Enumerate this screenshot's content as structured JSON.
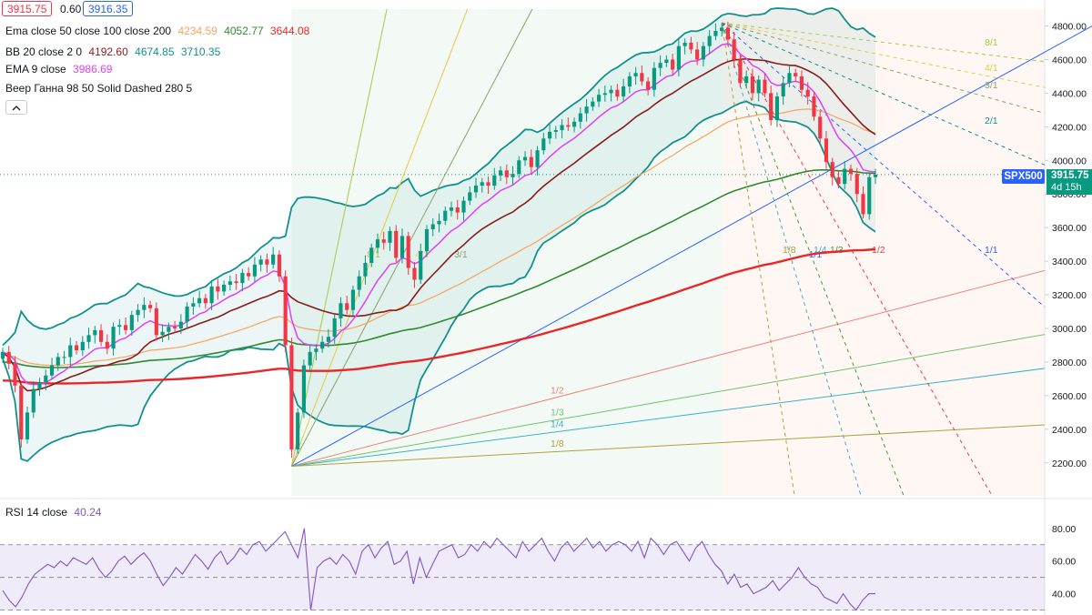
{
  "header": {
    "bid": "3915.75",
    "spread": "0.60",
    "ask": "3916.35"
  },
  "legend": {
    "ema": {
      "label": "Ema close 50 close 100 close 200",
      "v50": "4234.59",
      "v100": "4052.77",
      "v200": "3644.08"
    },
    "bb": {
      "label": "BB 20 close 2 0",
      "basis": "4192.60",
      "upper": "4674.85",
      "lower": "3710.35"
    },
    "ema9": {
      "label": "EMA 9 close",
      "value": "3986.69"
    },
    "gann": {
      "label": "Веер Ганна 98 50 Solid Dashed 280 5"
    },
    "rsi": {
      "label": "RSI 14 close",
      "value": "40.24"
    },
    "collapse_icon": "chevron-up-icon"
  },
  "price_tag": {
    "symbol": "SPX500",
    "price": "3915.75",
    "countdown": "4d 15h"
  },
  "colors": {
    "up": "#089981",
    "down": "#f23645",
    "ema50": "#f7a35c",
    "ema100": "#2e8b2e",
    "ema200": "#e8272a",
    "bb_basis": "#8b1a1a",
    "bb_bands": "#12908e",
    "ema9": "#e040fb",
    "rsi": "#7e57c2",
    "accent": "#2962ff"
  },
  "chart_data": [
    {
      "type": "candlestick",
      "symbol": "SPX500",
      "y_ticks": [
        "4800.00",
        "4600.00",
        "4400.00",
        "4200.00",
        "4000.00",
        "3800.00",
        "3600.00",
        "3400.00",
        "3200.00",
        "3000.00",
        "2800.00",
        "2600.00",
        "2400.00",
        "2200.00"
      ],
      "ylim": [
        2050,
        4900
      ],
      "last_price": 3915.75,
      "closes": [
        2860,
        2790,
        2660,
        2340,
        2500,
        2640,
        2680,
        2720,
        2780,
        2830,
        2830,
        2900,
        2870,
        2920,
        2960,
        2990,
        2920,
        2880,
        3010,
        3020,
        2990,
        3080,
        3110,
        3140,
        3120,
        2960,
        2980,
        3010,
        3000,
        3040,
        3130,
        3150,
        3180,
        3150,
        3250,
        3220,
        3260,
        3280,
        3270,
        3330,
        3310,
        3380,
        3410,
        3380,
        3440,
        3310,
        2900,
        2280,
        2500,
        2780,
        2860,
        2880,
        2920,
        2950,
        3060,
        3150,
        3110,
        3230,
        3310,
        3390,
        3480,
        3530,
        3510,
        3580,
        3420,
        3550,
        3360,
        3290,
        3460,
        3590,
        3620,
        3640,
        3700,
        3720,
        3690,
        3760,
        3810,
        3850,
        3870,
        3850,
        3910,
        3940,
        3900,
        3920,
        4000,
        4020,
        3960,
        4060,
        4130,
        4170,
        4180,
        4210,
        4200,
        4230,
        4280,
        4320,
        4350,
        4390,
        4400,
        4420,
        4380,
        4440,
        4500,
        4520,
        4470,
        4420,
        4550,
        4580,
        4600,
        4540,
        4680,
        4700,
        4660,
        4600,
        4680,
        4740,
        4770,
        4790,
        4720,
        4600,
        4460,
        4500,
        4400,
        4480,
        4400,
        4240,
        4380,
        4460,
        4520,
        4500,
        4420,
        4380,
        4260,
        4130,
        3990,
        3900,
        3860,
        3950,
        3920,
        3800,
        3680,
        3900,
        3915
      ],
      "ema_plotted": {
        "periods": [
          9,
          50,
          100,
          200
        ],
        "bb_period": 20,
        "bb_stddev": 2
      },
      "gann_fan": {
        "origin_price": 2180,
        "lower_fan_labels": [
          "8/1",
          "4/1",
          "3/1",
          "1/1",
          "1/2",
          "1/3",
          "1/4",
          "1/8"
        ],
        "upper_fan_labels": [
          "8/1",
          "4/1",
          "3/1",
          "2/1",
          "1/1",
          "1/2",
          "1/3",
          "1/4",
          "1/8"
        ],
        "top_price": 4818
      }
    },
    {
      "type": "line",
      "name": "RSI 14 close",
      "y_ticks": [
        "80.00",
        "60.00",
        "40.00"
      ],
      "ylim": [
        27,
        86
      ],
      "bands": [
        30,
        50,
        70
      ],
      "values": [
        42,
        36,
        32,
        38,
        46,
        52,
        55,
        58,
        56,
        60,
        57,
        62,
        60,
        58,
        62,
        55,
        50,
        54,
        60,
        63,
        58,
        62,
        65,
        60,
        52,
        45,
        50,
        56,
        52,
        58,
        64,
        60,
        55,
        62,
        66,
        58,
        62,
        68,
        64,
        70,
        72,
        66,
        70,
        74,
        78,
        70,
        62,
        80,
        30,
        56,
        60,
        62,
        58,
        64,
        60,
        52,
        66,
        70,
        62,
        68,
        72,
        58,
        60,
        66,
        46,
        62,
        50,
        58,
        66,
        68,
        70,
        62,
        64,
        70,
        66,
        72,
        68,
        74,
        70,
        66,
        62,
        72,
        66,
        70,
        74,
        66,
        60,
        68,
        72,
        66,
        70,
        74,
        68,
        72,
        66,
        70,
        72,
        70,
        66,
        72,
        62,
        74,
        70,
        64,
        70,
        72,
        66,
        60,
        68,
        72,
        64,
        58,
        54,
        46,
        52,
        44,
        46,
        40,
        42,
        44,
        48,
        42,
        46,
        50,
        56,
        50,
        46,
        44,
        38,
        36,
        34,
        40,
        34,
        30,
        36,
        40,
        40
      ],
      "current": 40.24
    }
  ]
}
